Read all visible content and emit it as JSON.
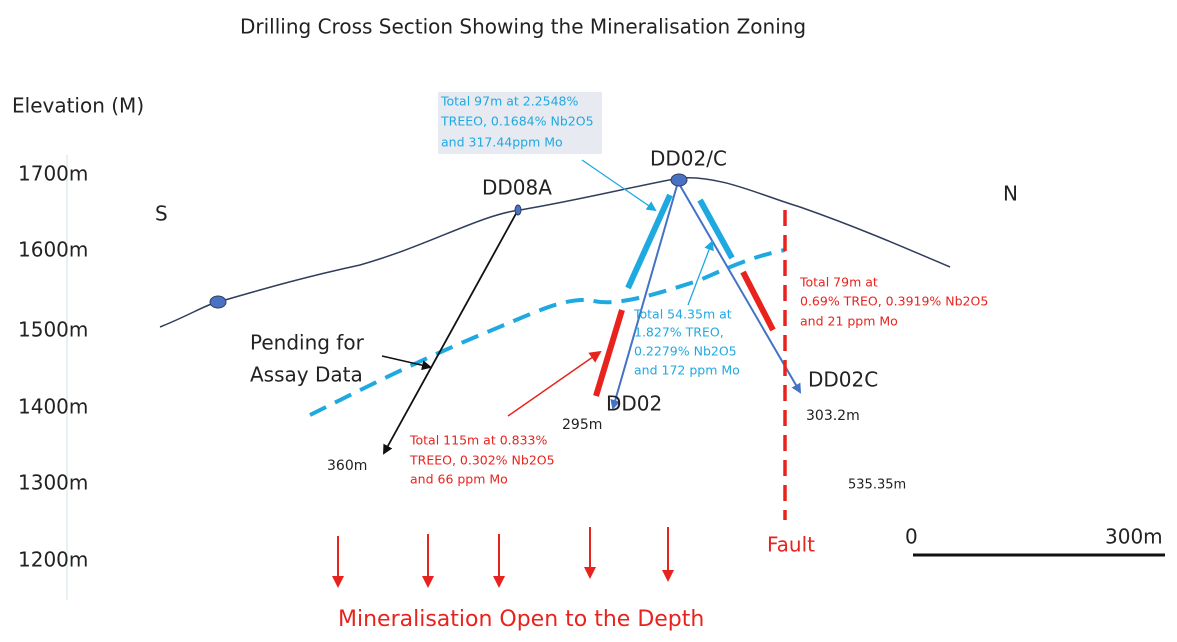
{
  "title": "Drilling Cross Section Showing the Mineralisation Zoning",
  "axis": {
    "label": "Elevation (M)",
    "ticks": [
      "1700m",
      "1600m",
      "1500m",
      "1400m",
      "1300m",
      "1200m"
    ]
  },
  "directions": {
    "south": "S",
    "north": "N"
  },
  "holes": [
    {
      "name": "DD08A",
      "depth": "360m"
    },
    {
      "name": "DD02/C"
    },
    {
      "name": "DD02",
      "depth": "295m"
    },
    {
      "name": "DD02C",
      "depth": "303.2m"
    }
  ],
  "annotations": {
    "top": [
      "Total  97m at 2.2548%",
      "TREEO, 0.1684% Nb2O5",
      "and 317.44ppm Mo"
    ],
    "middle": [
      "Total 54.35m at",
      "1.827% TREO,",
      "0.2279% Nb2O5",
      "and 172 ppm Mo"
    ],
    "right": [
      "Total 79m at",
      "0.69% TREO, 0.3919% Nb2O5",
      "and 21 ppm Mo"
    ],
    "bottom": [
      "Total  115m at 0.833%",
      "TREEO, 0.302% Nb2O5",
      "and 66 ppm Mo"
    ],
    "pending": [
      "Pending for",
      "Assay Data"
    ],
    "extra_depth": "535.35m",
    "fault": "Fault",
    "open": "Mineralisation Open to the Depth"
  },
  "scale": {
    "start": "0",
    "end": "300m"
  }
}
